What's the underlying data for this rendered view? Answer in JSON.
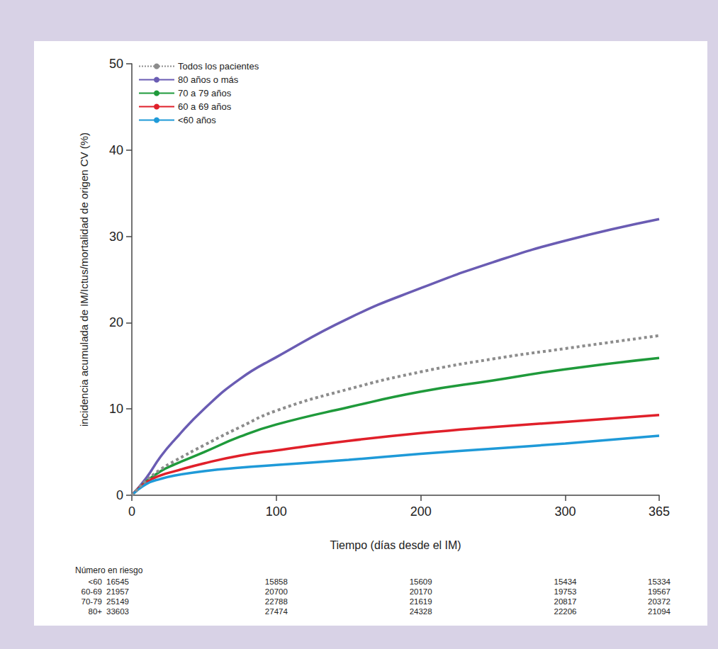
{
  "chart_data": {
    "type": "line",
    "y_label": "incidencia acumulada de IM/Ictus/mortalidad de origen CV (%)",
    "x_label": "Tiempo (días desde el IM)",
    "x": [
      0,
      10,
      20,
      30,
      50,
      75,
      100,
      150,
      200,
      250,
      300,
      365
    ],
    "series": [
      {
        "name": "Todos los pacientes",
        "color": "#8c8c8c",
        "line_style": "dotted",
        "values": [
          0,
          1.7,
          3,
          4,
          5.8,
          7.9,
          9.8,
          12.3,
          14.3,
          15.8,
          17,
          18.5
        ]
      },
      {
        "name": "80 años o más",
        "color": "#6a5cb3",
        "line_style": "solid",
        "values": [
          0,
          2,
          4.5,
          6.5,
          10,
          13.5,
          16,
          20.5,
          24,
          27,
          29.5,
          32
        ]
      },
      {
        "name": "70 a 79 años",
        "color": "#1f9a3b",
        "line_style": "solid",
        "values": [
          0,
          1.6,
          2.8,
          3.6,
          5,
          6.8,
          8.2,
          10.2,
          12,
          13.3,
          14.6,
          15.9
        ]
      },
      {
        "name": "60 a 69 años",
        "color": "#e0202a",
        "line_style": "solid",
        "values": [
          0,
          1.5,
          2.3,
          2.8,
          3.7,
          4.6,
          5.2,
          6.3,
          7.2,
          7.9,
          8.5,
          9.3
        ]
      },
      {
        "name": "<60 años",
        "color": "#1f9ad8",
        "line_style": "solid",
        "values": [
          0,
          1.3,
          1.9,
          2.3,
          2.8,
          3.2,
          3.5,
          4.1,
          4.8,
          5.4,
          6,
          6.9
        ]
      }
    ],
    "xlim": [
      0,
      365
    ],
    "xticks": [
      0,
      100,
      200,
      300,
      365
    ],
    "ylim": [
      0,
      50
    ],
    "yticks": [
      0,
      10,
      20,
      30,
      40,
      50
    ],
    "grid": false,
    "legend": "upper left",
    "at_risk": {
      "title": "Número en riesgo",
      "times": [
        0,
        100,
        200,
        300,
        365
      ],
      "rows": [
        {
          "label": "<60",
          "values": [
            16545,
            15858,
            15609,
            15434,
            15334
          ]
        },
        {
          "label": "60-69",
          "values": [
            21957,
            20700,
            20170,
            19753,
            19567
          ]
        },
        {
          "label": "70-79",
          "values": [
            25149,
            22788,
            21619,
            20817,
            20372
          ]
        },
        {
          "label": "80+",
          "values": [
            33603,
            27474,
            24328,
            22206,
            21094
          ]
        }
      ]
    }
  }
}
